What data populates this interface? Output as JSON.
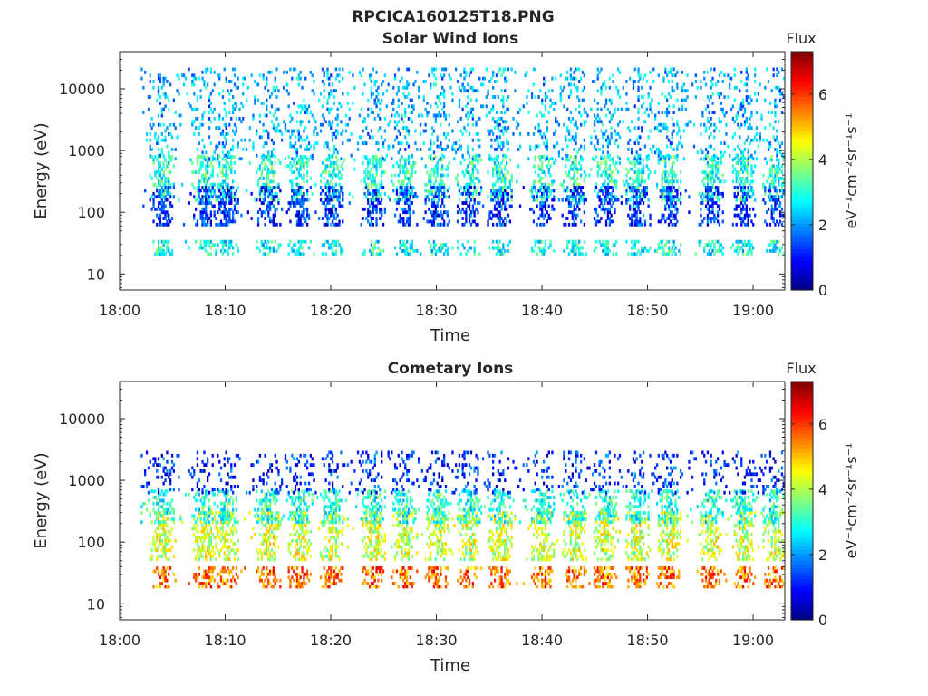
{
  "figure": {
    "title": "RPCICA160125T18.PNG"
  },
  "chart_data": [
    {
      "type": "heatmap",
      "title": "Solar Wind Ions",
      "xlabel": "Time",
      "ylabel": "Energy (eV)",
      "x_ticks": [
        "18:00",
        "18:10",
        "18:20",
        "18:30",
        "18:40",
        "18:50",
        "19:00"
      ],
      "xlim": [
        "18:00",
        "19:03"
      ],
      "y_ticks": [
        10,
        100,
        1000,
        10000
      ],
      "y_tick_labels": [
        "10",
        "100",
        "1000",
        "10000"
      ],
      "ylim": [
        5.5,
        40000
      ],
      "y_scale": "log",
      "colorbar": {
        "title": "Flux",
        "label": "eV⁻¹cm⁻²sr⁻¹s⁻¹",
        "range": [
          0,
          7.3
        ],
        "ticks": [
          0,
          2,
          4,
          6
        ],
        "tick_labels": [
          "0",
          "2",
          "4",
          "6"
        ],
        "colormap": "jet"
      },
      "data_start": "18:02",
      "sweep_times": [
        "18:04",
        "18:08",
        "18:10",
        "18:14",
        "18:17",
        "18:20",
        "18:24",
        "18:27",
        "18:30",
        "18:33",
        "18:36",
        "18:40",
        "18:43",
        "18:46",
        "18:49",
        "18:52",
        "18:56",
        "18:59",
        "19:02"
      ],
      "bands": [
        {
          "e_low": 150,
          "e_high": 800,
          "flux": 3.0
        },
        {
          "e_low": 60,
          "e_high": 250,
          "flux": 1.3
        },
        {
          "e_low": 20,
          "e_high": 35,
          "flux": 2.8
        },
        {
          "e_low": 700,
          "e_high": 20000,
          "flux": 2.2
        }
      ]
    },
    {
      "type": "heatmap",
      "title": "Cometary Ions",
      "xlabel": "Time",
      "ylabel": "Energy (eV)",
      "x_ticks": [
        "18:00",
        "18:10",
        "18:20",
        "18:30",
        "18:40",
        "18:50",
        "19:00"
      ],
      "xlim": [
        "18:00",
        "19:03"
      ],
      "y_ticks": [
        10,
        100,
        1000,
        10000
      ],
      "y_tick_labels": [
        "10",
        "100",
        "1000",
        "10000"
      ],
      "ylim": [
        5.5,
        40000
      ],
      "y_scale": "log",
      "colorbar": {
        "title": "Flux",
        "label": "eV⁻¹cm⁻²sr⁻¹s⁻¹",
        "range": [
          0,
          7.3
        ],
        "ticks": [
          0,
          2,
          4,
          6
        ],
        "tick_labels": [
          "0",
          "2",
          "4",
          "6"
        ],
        "colormap": "jet"
      },
      "data_start": "18:02",
      "sweep_times": [
        "18:04",
        "18:08",
        "18:10",
        "18:14",
        "18:17",
        "18:20",
        "18:24",
        "18:27",
        "18:30",
        "18:33",
        "18:36",
        "18:40",
        "18:43",
        "18:46",
        "18:49",
        "18:52",
        "18:56",
        "18:59",
        "19:02"
      ],
      "bands": [
        {
          "e_low": 18,
          "e_high": 40,
          "flux": 5.6
        },
        {
          "e_low": 50,
          "e_high": 300,
          "flux": 4.2
        },
        {
          "e_low": 200,
          "e_high": 700,
          "flux": 3.0
        },
        {
          "e_low": 600,
          "e_high": 3000,
          "flux": 1.2
        }
      ]
    }
  ]
}
